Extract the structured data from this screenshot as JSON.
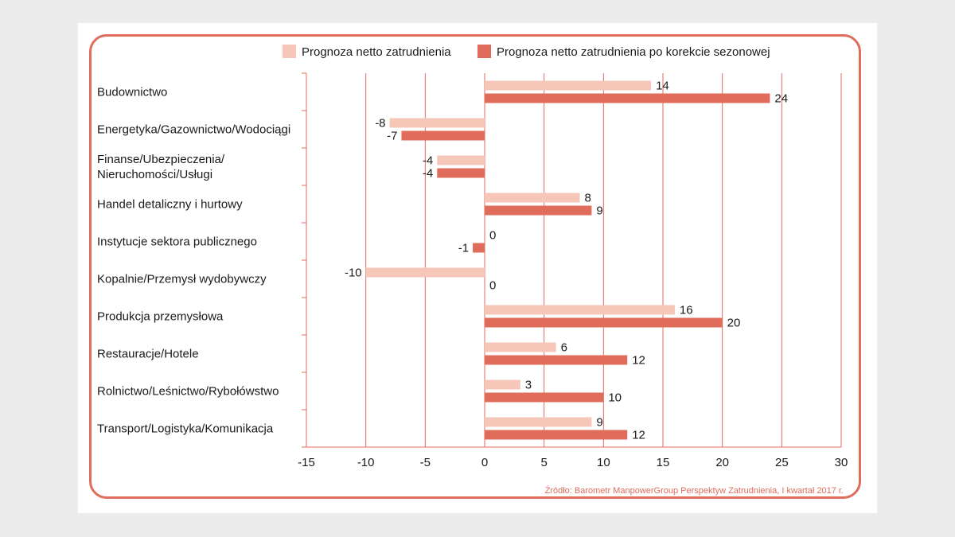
{
  "chart_data": {
    "type": "bar",
    "orientation": "horizontal",
    "title": "",
    "xlabel": "",
    "ylabel": "",
    "xlim": [
      -15,
      30
    ],
    "xticks": [
      -15,
      -10,
      -5,
      0,
      5,
      10,
      15,
      20,
      25,
      30
    ],
    "grid": true,
    "legend_position": "top",
    "categories": [
      [
        "Budownictwo"
      ],
      [
        "Energetyka/Gazownictwo/Wodociągi"
      ],
      [
        "Finanse/Ubezpieczenia/",
        "Nieruchomości/Usługi"
      ],
      [
        "Handel detaliczny i hurtowy"
      ],
      [
        "Instytucje sektora publicznego"
      ],
      [
        "Kopalnie/Przemysł wydobywczy"
      ],
      [
        "Produkcja przemysłowa"
      ],
      [
        "Restauracje/Hotele"
      ],
      [
        "Rolnictwo/Leśnictwo/Rybołówstwo"
      ],
      [
        "Transport/Logistyka/Komunikacja"
      ]
    ],
    "series": [
      {
        "name": "Prognoza netto zatrudnienia",
        "color": "#f6c7b8",
        "values": [
          14,
          -8,
          -4,
          8,
          0,
          -10,
          16,
          6,
          3,
          9
        ]
      },
      {
        "name": "Prognoza netto zatrudnienia po korekcie sezonowej",
        "color": "#e06c5c",
        "values": [
          24,
          -7,
          -4,
          9,
          -1,
          0,
          20,
          12,
          10,
          12
        ]
      }
    ],
    "source": "Źródło: Barometr ManpowerGroup Perspektyw Zatrudnienia, I kwartał 2017 r."
  },
  "colors": {
    "grid": "#e06c5c",
    "frame": "#e06c5c",
    "text": "#1a1a1a"
  }
}
